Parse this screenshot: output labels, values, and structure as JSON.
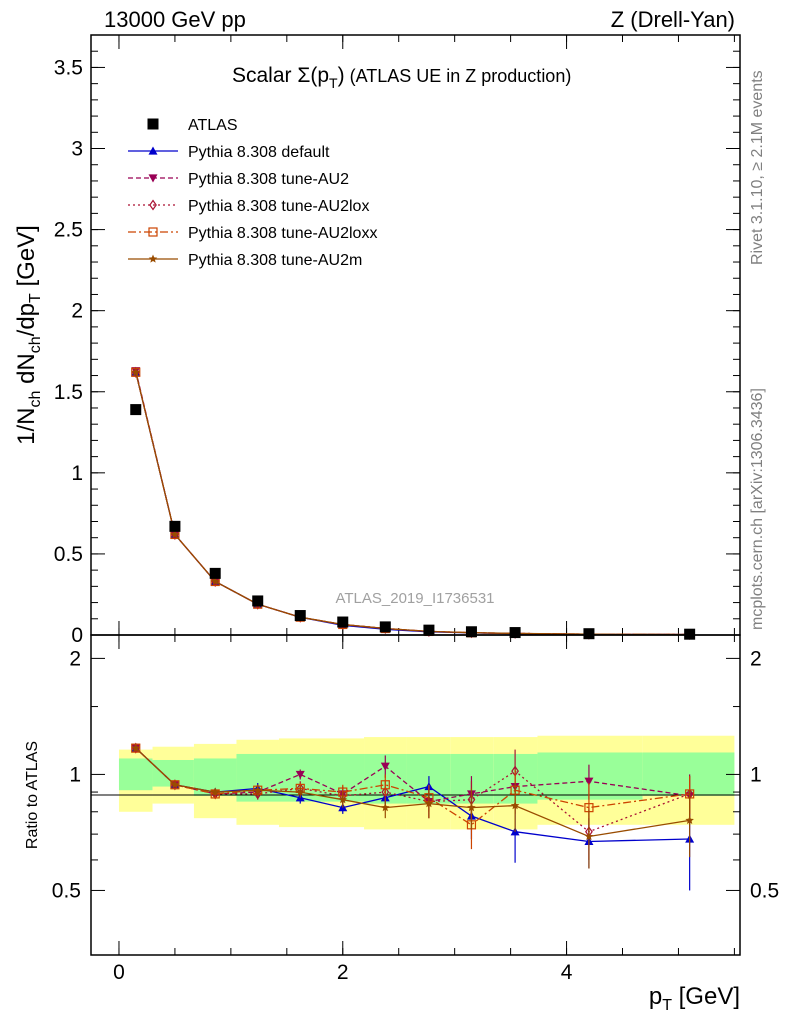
{
  "header": {
    "left": "13000 GeV pp",
    "right": "Z (Drell-Yan)"
  },
  "side_labels": {
    "rivet": "Rivet 3.1.10, ≥ 2.1M events",
    "mcplots": "mcplots.cern.ch [arXiv:1306.3436]"
  },
  "watermark": "ATLAS_2019_I1736531",
  "chart_data": [
    {
      "type": "line",
      "panel": "main",
      "title": "Scalar Σ(p_T) (ATLAS UE in Z production)",
      "title_parts": {
        "pre": "Scalar ",
        "sigma": "Σ(p",
        "sub": "T",
        "post": ")",
        "rest": " (ATLAS UE in Z production)"
      },
      "ylabel": "1/N_ch dN_ch/dp_T [GeV]",
      "xlim": [
        -0.25,
        5.55
      ],
      "ylim": [
        0,
        3.7
      ],
      "y_ticks": [
        0,
        0.5,
        1,
        1.5,
        2,
        2.5,
        3,
        3.5
      ],
      "y_tick_labels": [
        "0",
        "0.5",
        "1",
        "1.5",
        "2",
        "2.5",
        "3",
        "3.5"
      ],
      "x": [
        0.15,
        0.5,
        0.86,
        1.24,
        1.62,
        2.0,
        2.38,
        2.77,
        3.15,
        3.54,
        4.2,
        5.1
      ],
      "legend_position": "upper-left",
      "series": [
        {
          "name": "ATLAS",
          "marker": "square",
          "color": "#000000",
          "dash": "",
          "values": [
            1.39,
            0.67,
            0.38,
            0.21,
            0.12,
            0.08,
            0.05,
            0.03,
            0.02,
            0.015,
            0.008,
            0.005
          ]
        },
        {
          "name": "Pythia 8.308 default",
          "marker": "triangle-up",
          "color": "#0000cc",
          "dash": "",
          "values": [
            1.62,
            0.62,
            0.33,
            0.19,
            0.11,
            0.06,
            0.035,
            0.02,
            0.013,
            0.008,
            0.004,
            0.003
          ]
        },
        {
          "name": "Pythia 8.308 tune-AU2",
          "marker": "triangle-down",
          "color": "#990055",
          "dash": "5,3",
          "values": [
            1.63,
            0.62,
            0.33,
            0.19,
            0.11,
            0.065,
            0.04,
            0.022,
            0.014,
            0.01,
            0.005,
            0.003
          ]
        },
        {
          "name": "Pythia 8.308 tune-AU2lox",
          "marker": "diamond-open",
          "color": "#aa1133",
          "dash": "2,3",
          "values": [
            1.62,
            0.62,
            0.33,
            0.19,
            0.11,
            0.065,
            0.04,
            0.022,
            0.014,
            0.01,
            0.005,
            0.003
          ]
        },
        {
          "name": "Pythia 8.308 tune-AU2loxx",
          "marker": "square-open",
          "color": "#cc4400",
          "dash": "8,3,2,3",
          "values": [
            1.62,
            0.62,
            0.33,
            0.19,
            0.11,
            0.065,
            0.04,
            0.022,
            0.014,
            0.01,
            0.005,
            0.003
          ]
        },
        {
          "name": "Pythia 8.308 tune-AU2m",
          "marker": "star",
          "color": "#994c00",
          "dash": "",
          "values": [
            1.62,
            0.62,
            0.33,
            0.19,
            0.11,
            0.065,
            0.04,
            0.022,
            0.014,
            0.01,
            0.005,
            0.003
          ]
        }
      ]
    },
    {
      "type": "line",
      "panel": "ratio",
      "ylabel": "Ratio to ATLAS",
      "xlabel": "p_T [GeV]",
      "xlabel_parts": {
        "p": "p",
        "sub": "T",
        "unit": " [GeV]"
      },
      "xlim": [
        -0.25,
        5.55
      ],
      "ylim": [
        0.34,
        2.3
      ],
      "x_ticks": [
        0,
        2,
        4
      ],
      "x_tick_labels": [
        "0",
        "2",
        "4"
      ],
      "y_ticks": [
        0.5,
        1,
        2
      ],
      "y_tick_labels": [
        "0.5",
        "1",
        "2"
      ],
      "uncertainty_bands": {
        "bin_edges": [
          0.0,
          0.3,
          0.67,
          1.05,
          1.43,
          1.81,
          2.19,
          2.57,
          2.96,
          3.35,
          3.74,
          4.68,
          5.5
        ],
        "yellow_low": [
          0.8,
          0.84,
          0.77,
          0.74,
          0.73,
          0.73,
          0.72,
          0.72,
          0.72,
          0.72,
          0.74,
          0.74
        ],
        "yellow_high": [
          1.16,
          1.18,
          1.2,
          1.23,
          1.24,
          1.24,
          1.25,
          1.25,
          1.25,
          1.25,
          1.26,
          1.26
        ],
        "green_low": [
          0.91,
          0.93,
          0.88,
          0.85,
          0.85,
          0.85,
          0.84,
          0.84,
          0.84,
          0.84,
          0.86,
          0.88
        ],
        "green_high": [
          1.1,
          1.09,
          1.1,
          1.13,
          1.13,
          1.13,
          1.13,
          1.13,
          1.13,
          1.13,
          1.14,
          1.14
        ]
      },
      "series": [
        {
          "name": "Pythia 8.308 default",
          "marker": "triangle-up",
          "color": "#0000cc",
          "dash": "",
          "values": [
            1.17,
            0.94,
            0.9,
            0.92,
            0.87,
            0.82,
            0.87,
            0.93,
            0.78,
            0.71,
            0.67,
            0.68
          ],
          "errors": [
            0.02,
            0.01,
            0.02,
            0.03,
            0.03,
            0.03,
            0.05,
            0.06,
            0.1,
            0.12,
            0.1,
            0.18
          ]
        },
        {
          "name": "Pythia 8.308 tune-AU2",
          "marker": "triangle-down",
          "color": "#990055",
          "dash": "5,3",
          "values": [
            1.17,
            0.94,
            0.89,
            0.9,
            1.0,
            0.89,
            1.05,
            0.85,
            0.89,
            0.93,
            0.96,
            0.88
          ],
          "errors": [
            0.02,
            0.01,
            0.02,
            0.03,
            0.03,
            0.04,
            0.07,
            0.08,
            0.1,
            0.12,
            0.1,
            0.12
          ]
        },
        {
          "name": "Pythia 8.308 tune-AU2lox",
          "marker": "diamond-open",
          "color": "#aa1133",
          "dash": "2,3",
          "values": [
            1.17,
            0.94,
            0.89,
            0.89,
            0.92,
            0.88,
            0.9,
            0.85,
            0.86,
            1.02,
            0.71,
            0.89
          ],
          "errors": [
            0.02,
            0.01,
            0.02,
            0.03,
            0.04,
            0.05,
            0.06,
            0.08,
            0.1,
            0.14,
            0.11,
            0.1
          ]
        },
        {
          "name": "Pythia 8.308 tune-AU2loxx",
          "marker": "square-open",
          "color": "#cc4400",
          "dash": "8,3,2,3",
          "values": [
            1.17,
            0.94,
            0.89,
            0.91,
            0.92,
            0.9,
            0.94,
            0.87,
            0.74,
            0.91,
            0.82,
            0.89
          ],
          "errors": [
            0.02,
            0.01,
            0.02,
            0.03,
            0.03,
            0.04,
            0.06,
            0.07,
            0.1,
            0.12,
            0.13,
            0.1
          ]
        },
        {
          "name": "Pythia 8.308 tune-AU2m",
          "marker": "star",
          "color": "#994c00",
          "dash": "",
          "values": [
            1.17,
            0.94,
            0.9,
            0.91,
            0.9,
            0.86,
            0.82,
            0.84,
            0.82,
            0.83,
            0.69,
            0.76
          ],
          "errors": [
            0.02,
            0.01,
            0.02,
            0.03,
            0.03,
            0.04,
            0.05,
            0.07,
            0.1,
            0.12,
            0.12,
            0.15
          ]
        }
      ]
    }
  ]
}
